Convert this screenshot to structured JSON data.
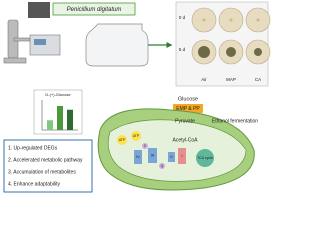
{
  "fungus": "Penicillium digitatum",
  "dishes": {
    "rows": [
      "0 d",
      "5 d"
    ],
    "columns": [
      "Air",
      "MAP",
      "CA"
    ]
  },
  "inset": {
    "title": "D-(+)-Glucose",
    "values": [
      2.6,
      6.4,
      5.4
    ],
    "ylim": [
      0,
      8
    ]
  },
  "findings": [
    "1. Up-regulated DEGs",
    "2. Accelerated metabolic pathway",
    "3. Accumulation of metabolites",
    "4. Enhance adaptability"
  ],
  "pathway": {
    "glucose": "Glucose",
    "emp": "EMP & PP",
    "pyruvate": "Pyruvate",
    "fermentation": "Ethanol fermentation",
    "acetyl": "Acetyl-CoA",
    "tca": "TCA cycle",
    "atp": [
      "ATP",
      "ATP"
    ],
    "complexes": [
      "IV",
      "III",
      "II",
      "I"
    ],
    "q": "Q",
    "c": "C"
  }
}
